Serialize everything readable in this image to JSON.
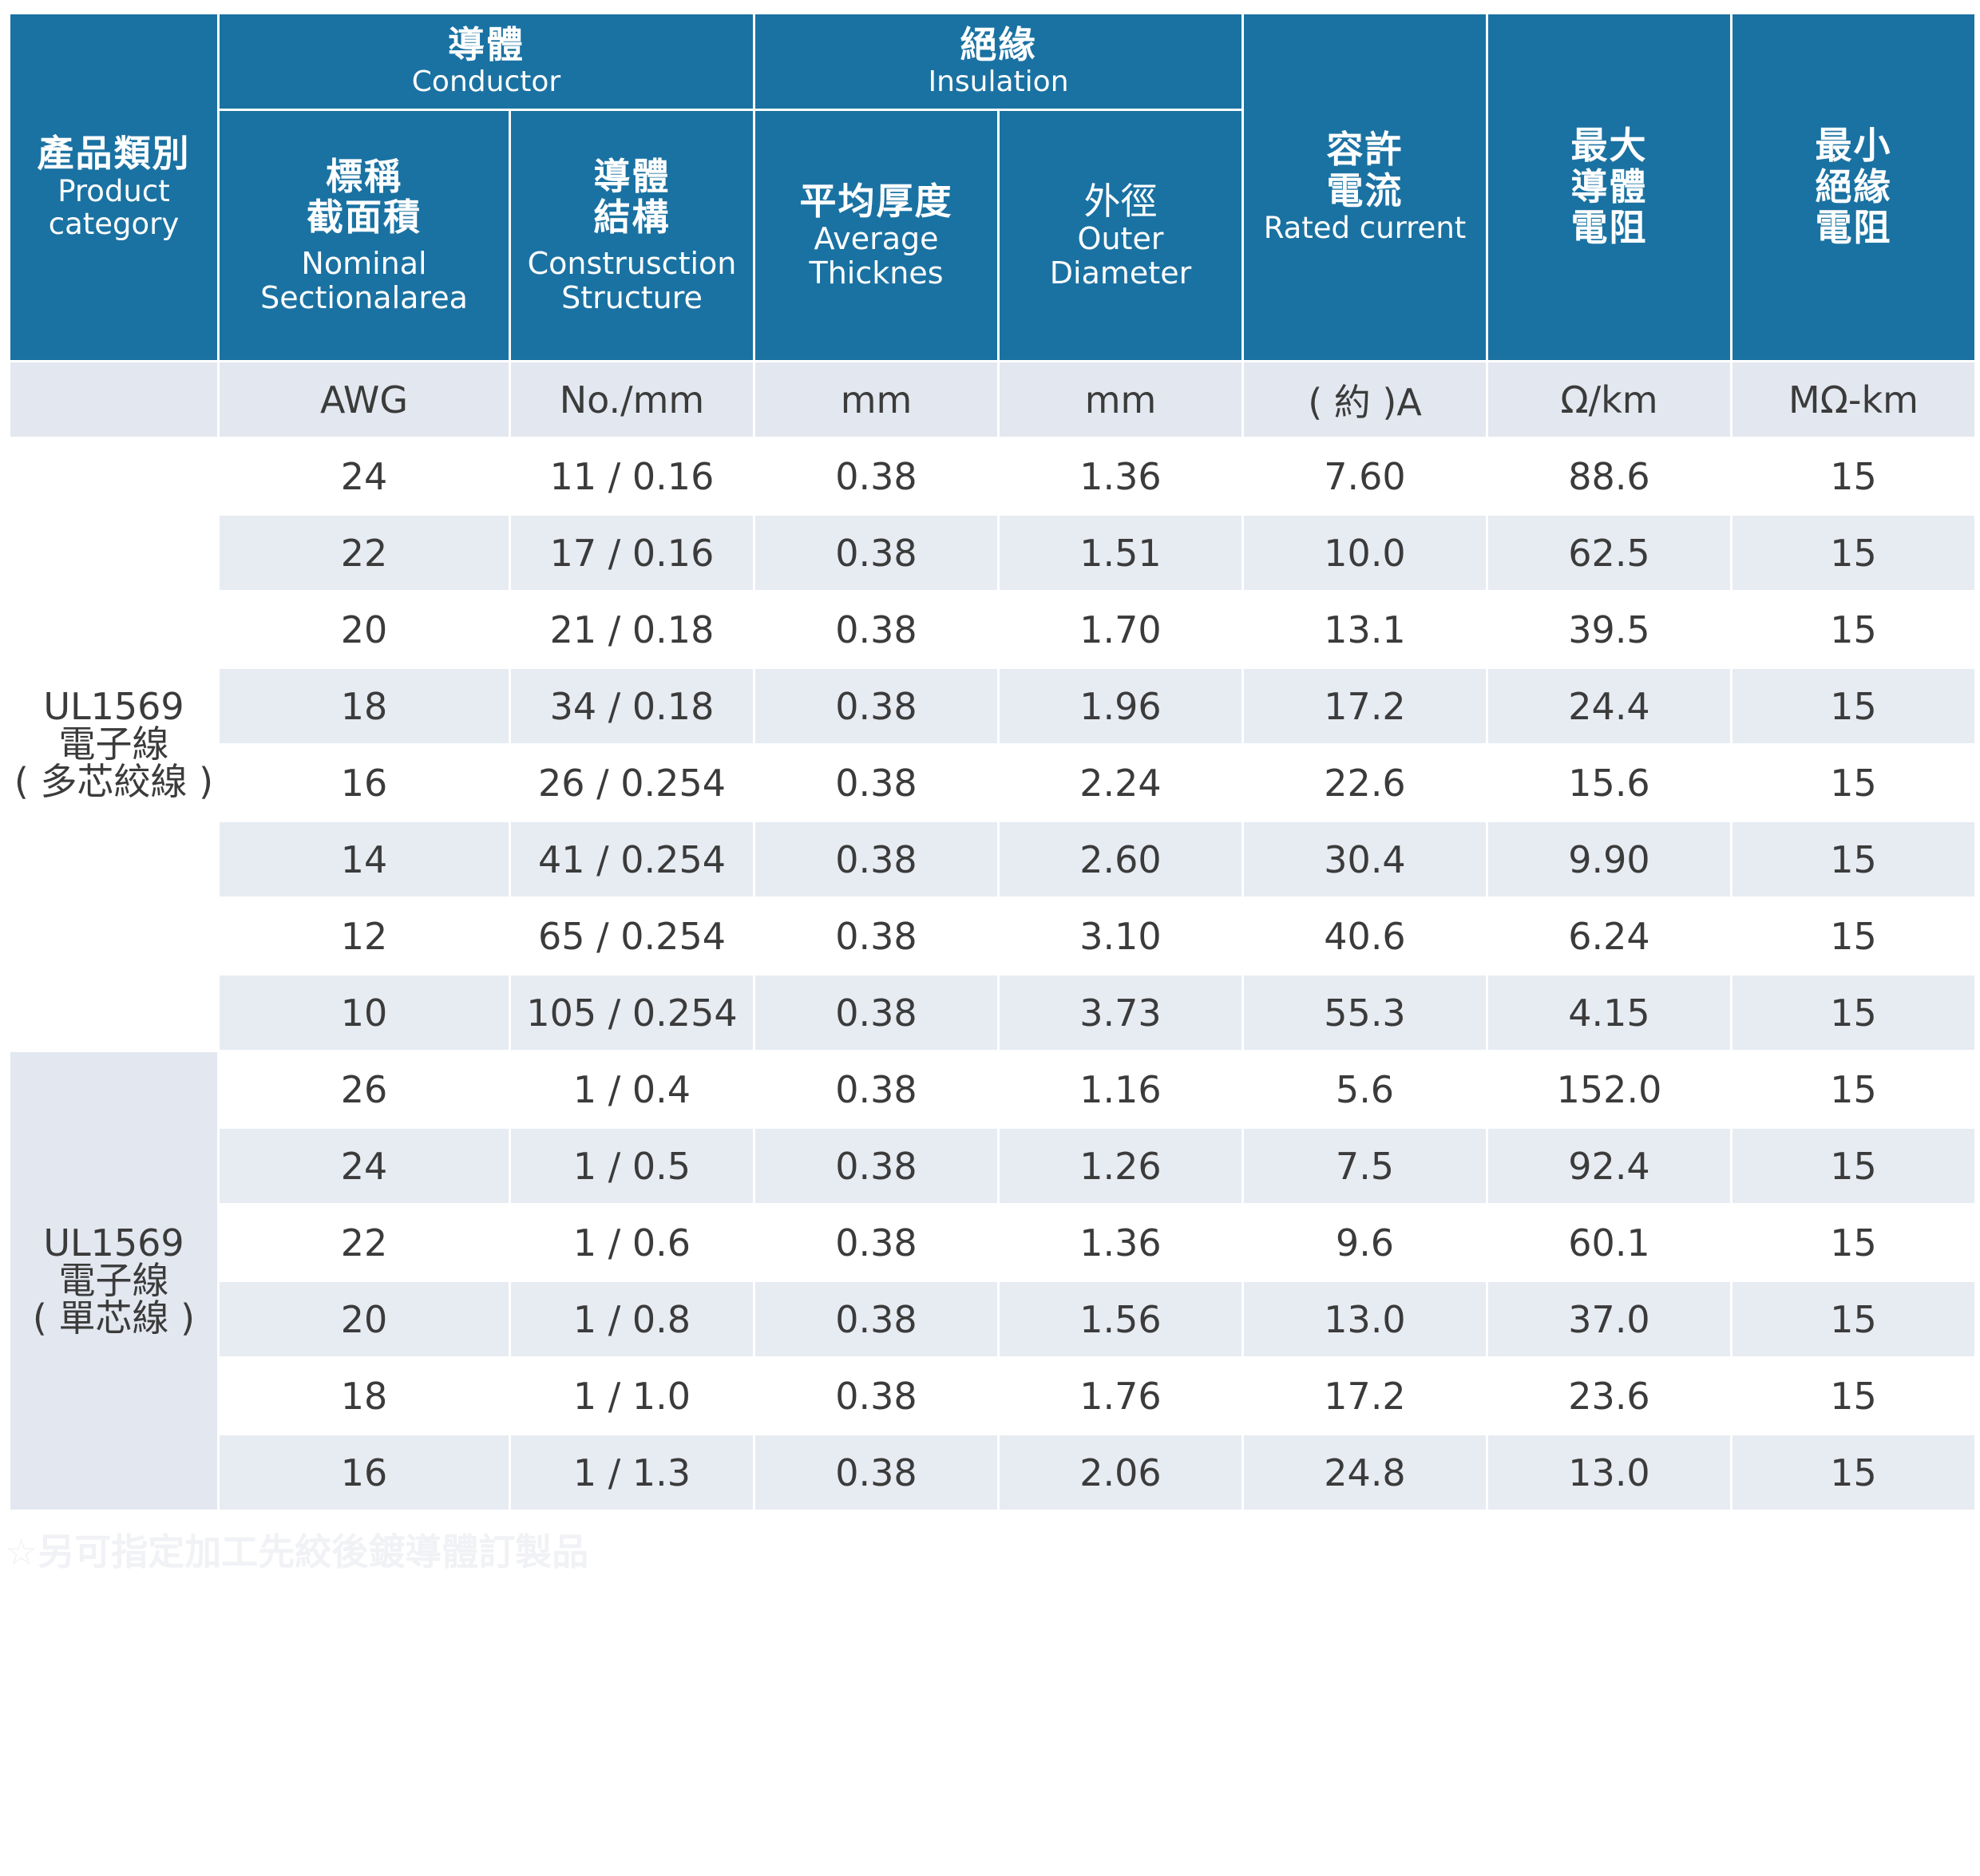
{
  "header": {
    "category": {
      "zh": "產品類別",
      "en1": "Product",
      "en2": "category"
    },
    "conductor_group": {
      "zh": "導體",
      "en": "Conductor"
    },
    "insulation_group": {
      "zh": "絕緣",
      "en": "Insulation"
    },
    "nominal": {
      "zh1": "標稱",
      "zh2": "截面積",
      "en1": "Nominal",
      "en2": "Sectionalarea"
    },
    "construction": {
      "zh1": "導體",
      "zh2": "結構",
      "en1": "Construsction",
      "en2": "Structure"
    },
    "avg_thickness": {
      "zh": "平均厚度",
      "en1": "Average",
      "en2": "Thicknes"
    },
    "outer_diameter": {
      "zh": "外徑",
      "en1": "Outer",
      "en2": "Diameter"
    },
    "rated_current": {
      "zh1": "容許",
      "zh2": "電流",
      "en": "Rated current"
    },
    "max_resistance": {
      "zh1": "最大",
      "zh2": "導體",
      "zh3": "電阻"
    },
    "min_insulation": {
      "zh1": "最小",
      "zh2": "絕緣",
      "zh3": "電阻"
    }
  },
  "units": [
    "",
    "AWG",
    "No./mm",
    "mm",
    "mm",
    "( 約 )A",
    "Ω/km",
    "MΩ-km"
  ],
  "groups": [
    {
      "label1": "UL1569",
      "label2": "電子線",
      "label3": "( 多芯絞線 )",
      "rows": [
        [
          "24",
          "11 / 0.16",
          "0.38",
          "1.36",
          "7.60",
          "88.6",
          "15"
        ],
        [
          "22",
          "17 / 0.16",
          "0.38",
          "1.51",
          "10.0",
          "62.5",
          "15"
        ],
        [
          "20",
          "21 / 0.18",
          "0.38",
          "1.70",
          "13.1",
          "39.5",
          "15"
        ],
        [
          "18",
          "34 / 0.18",
          "0.38",
          "1.96",
          "17.2",
          "24.4",
          "15"
        ],
        [
          "16",
          "26 / 0.254",
          "0.38",
          "2.24",
          "22.6",
          "15.6",
          "15"
        ],
        [
          "14",
          "41 / 0.254",
          "0.38",
          "2.60",
          "30.4",
          "9.90",
          "15"
        ],
        [
          "12",
          "65 / 0.254",
          "0.38",
          "3.10",
          "40.6",
          "6.24",
          "15"
        ],
        [
          "10",
          "105 / 0.254",
          "0.38",
          "3.73",
          "55.3",
          "4.15",
          "15"
        ]
      ]
    },
    {
      "label1": "UL1569",
      "label2": "電子線",
      "label3": "( 單芯線 )",
      "rows": [
        [
          "26",
          "1 / 0.4",
          "0.38",
          "1.16",
          "5.6",
          "152.0",
          "15"
        ],
        [
          "24",
          "1 / 0.5",
          "0.38",
          "1.26",
          "7.5",
          "92.4",
          "15"
        ],
        [
          "22",
          "1 / 0.6",
          "0.38",
          "1.36",
          "9.6",
          "60.1",
          "15"
        ],
        [
          "20",
          "1 / 0.8",
          "0.38",
          "1.56",
          "13.0",
          "37.0",
          "15"
        ],
        [
          "18",
          "1 / 1.0",
          "0.38",
          "1.76",
          "17.2",
          "23.6",
          "15"
        ],
        [
          "16",
          "1 / 1.3",
          "0.38",
          "2.06",
          "24.8",
          "13.0",
          "15"
        ]
      ]
    }
  ],
  "footnote": "☆另可指定加工先絞後鍍導體訂製品",
  "colors": {
    "header_bg": "#1a72a2",
    "unit_row_bg": "#e3e7ef",
    "stripe_bg": "#e7ebf2",
    "unit_text": "#1a72a2",
    "body_text": "#3b3b3b"
  }
}
